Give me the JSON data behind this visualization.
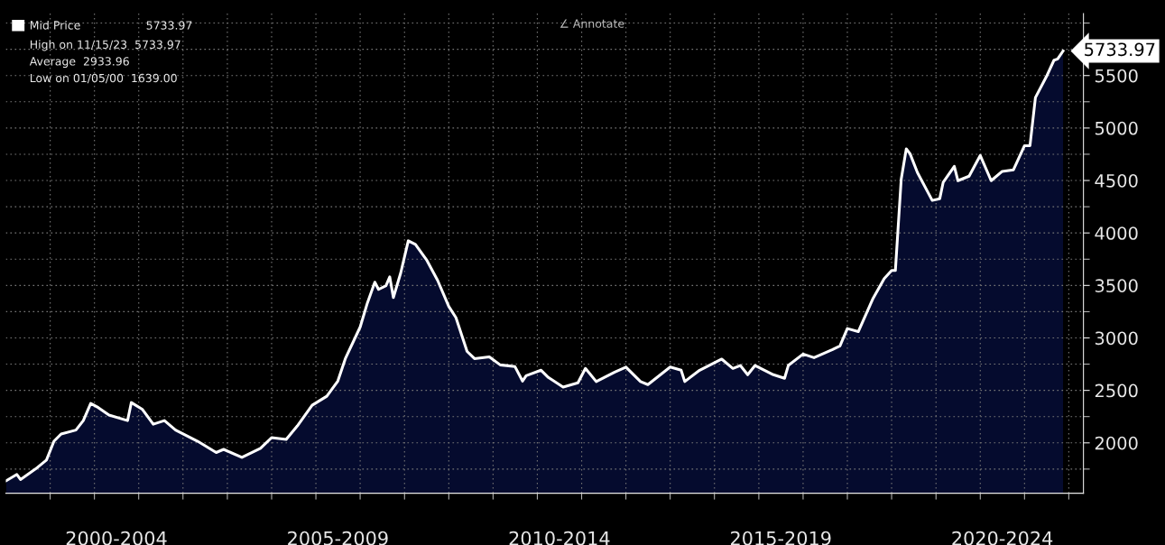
{
  "chart_data": {
    "type": "area",
    "x": [
      "2000-01-05",
      "2000-04",
      "2000-05",
      "2000-09",
      "2000-12",
      "2001-02",
      "2001-04",
      "2001-08",
      "2001-10",
      "2001-12",
      "2002-02",
      "2002-05",
      "2002-10",
      "2002-11",
      "2003-02",
      "2003-05",
      "2003-08",
      "2003-11",
      "2004-05",
      "2004-10",
      "2004-12",
      "2005-05",
      "2005-10",
      "2006-01",
      "2006-05",
      "2006-08",
      "2006-12",
      "2007-04",
      "2007-07",
      "2007-09",
      "2008-01",
      "2008-03",
      "2008-05",
      "2008-06",
      "2008-08",
      "2008-09",
      "2008-10",
      "2008-12",
      "2009-02",
      "2009-04",
      "2009-07",
      "2009-10",
      "2010-01",
      "2010-03",
      "2010-06",
      "2010-08",
      "2010-12",
      "2011-03",
      "2011-07",
      "2011-09",
      "2011-10",
      "2012-02",
      "2012-04",
      "2012-08",
      "2012-12",
      "2013-02",
      "2013-05",
      "2013-10",
      "2014-01",
      "2014-05",
      "2014-07",
      "2015-01",
      "2015-04",
      "2015-05",
      "2015-09",
      "2016-03",
      "2016-06",
      "2016-08",
      "2016-10",
      "2016-12",
      "2017-05",
      "2017-08",
      "2017-09",
      "2018-01",
      "2018-04",
      "2018-09",
      "2018-11",
      "2019-01",
      "2019-04",
      "2019-08",
      "2019-11",
      "2020-01",
      "2020-02",
      "2020-03-20",
      "2020-05-01",
      "2020-06",
      "2020-08",
      "2020-12",
      "2021-02",
      "2021-03",
      "2021-06",
      "2021-07",
      "2021-10",
      "2022-01",
      "2022-04",
      "2022-07",
      "2022-10",
      "2023-01",
      "2023-02-15",
      "2023-04-01",
      "2023-07",
      "2023-09",
      "2023-10",
      "2023-11-15"
    ],
    "series": [
      {
        "name": "Mid Price",
        "color": "#ffffff",
        "values": [
          1639,
          1699,
          1651,
          1750,
          1836,
          2015,
          2084,
          2122,
          2212,
          2375,
          2336,
          2264,
          2212,
          2384,
          2318,
          2178,
          2212,
          2122,
          2015,
          1908,
          1938,
          1861,
          1947,
          2050,
          2033,
          2161,
          2358,
          2444,
          2589,
          2803,
          3103,
          3334,
          3531,
          3462,
          3497,
          3582,
          3385,
          3621,
          3925,
          3890,
          3745,
          3548,
          3300,
          3193,
          2871,
          2803,
          2820,
          2743,
          2726,
          2589,
          2640,
          2692,
          2623,
          2532,
          2572,
          2709,
          2584,
          2674,
          2722,
          2584,
          2555,
          2722,
          2692,
          2584,
          2692,
          2798,
          2709,
          2737,
          2649,
          2737,
          2649,
          2615,
          2737,
          2846,
          2812,
          2889,
          2923,
          3089,
          3060,
          3377,
          3565,
          3642,
          3642,
          4510,
          4801,
          4755,
          4575,
          4310,
          4327,
          4481,
          4635,
          4498,
          4541,
          4738,
          4498,
          4587,
          4601,
          4832,
          4832,
          5290,
          5491,
          5646,
          5658,
          5733.97
        ]
      }
    ],
    "xlim": [
      "2000-01-01",
      "2024-05-01"
    ],
    "xticks": [
      {
        "value": "2002-07-01",
        "label": "2000-2004"
      },
      {
        "value": "2007-07-01",
        "label": "2005-2009"
      },
      {
        "value": "2012-07-01",
        "label": "2010-2014"
      },
      {
        "value": "2017-07-01",
        "label": "2015-2019"
      },
      {
        "value": "2022-07-01",
        "label": "2020-2024"
      },
      {
        "value": "2001-01-01",
        "label": null
      },
      {
        "value": "2002-01-01",
        "label": null
      },
      {
        "value": "2003-01-01",
        "label": null
      },
      {
        "value": "2004-01-01",
        "label": null
      },
      {
        "value": "2005-01-01",
        "label": null
      },
      {
        "value": "2006-01-01",
        "label": null
      },
      {
        "value": "2007-01-01",
        "label": null
      },
      {
        "value": "2008-01-01",
        "label": null
      },
      {
        "value": "2009-01-01",
        "label": null
      },
      {
        "value": "2010-01-01",
        "label": null
      },
      {
        "value": "2011-01-01",
        "label": null
      },
      {
        "value": "2012-01-01",
        "label": null
      },
      {
        "value": "2013-01-01",
        "label": null
      },
      {
        "value": "2014-01-01",
        "label": null
      },
      {
        "value": "2015-01-01",
        "label": null
      },
      {
        "value": "2016-01-01",
        "label": null
      },
      {
        "value": "2017-01-01",
        "label": null
      },
      {
        "value": "2018-01-01",
        "label": null
      },
      {
        "value": "2019-01-01",
        "label": null
      },
      {
        "value": "2020-01-01",
        "label": null
      },
      {
        "value": "2021-01-01",
        "label": null
      },
      {
        "value": "2022-01-01",
        "label": null
      },
      {
        "value": "2023-01-01",
        "label": null
      },
      {
        "value": "2024-01-01",
        "label": null
      }
    ],
    "ylim": [
      1520,
      6090
    ],
    "yticks": [
      {
        "value": 1750,
        "label": null
      },
      2000,
      {
        "value": 2250,
        "label": null
      },
      2500,
      {
        "value": 2750,
        "label": null
      },
      3000,
      {
        "value": 3250,
        "label": null
      },
      3500,
      {
        "value": 3750,
        "label": null
      },
      4000,
      {
        "value": 4250,
        "label": null
      },
      4500,
      {
        "value": 4750,
        "label": null
      },
      5000,
      {
        "value": 5250,
        "label": null
      },
      5500,
      {
        "value": 5750,
        "label": null
      },
      {
        "value": 6000,
        "label": null
      }
    ],
    "grid": true,
    "legend": "top left",
    "annotations": [
      "∠ Annotate",
      "5733.97",
      "High on 11/15/23  5733.97",
      "Average  2933.96",
      "Low on 01/05/00  1639.00",
      {
        "text": "5733.97",
        "x": "2023-11-15",
        "y": 5733.97
      }
    ]
  }
}
